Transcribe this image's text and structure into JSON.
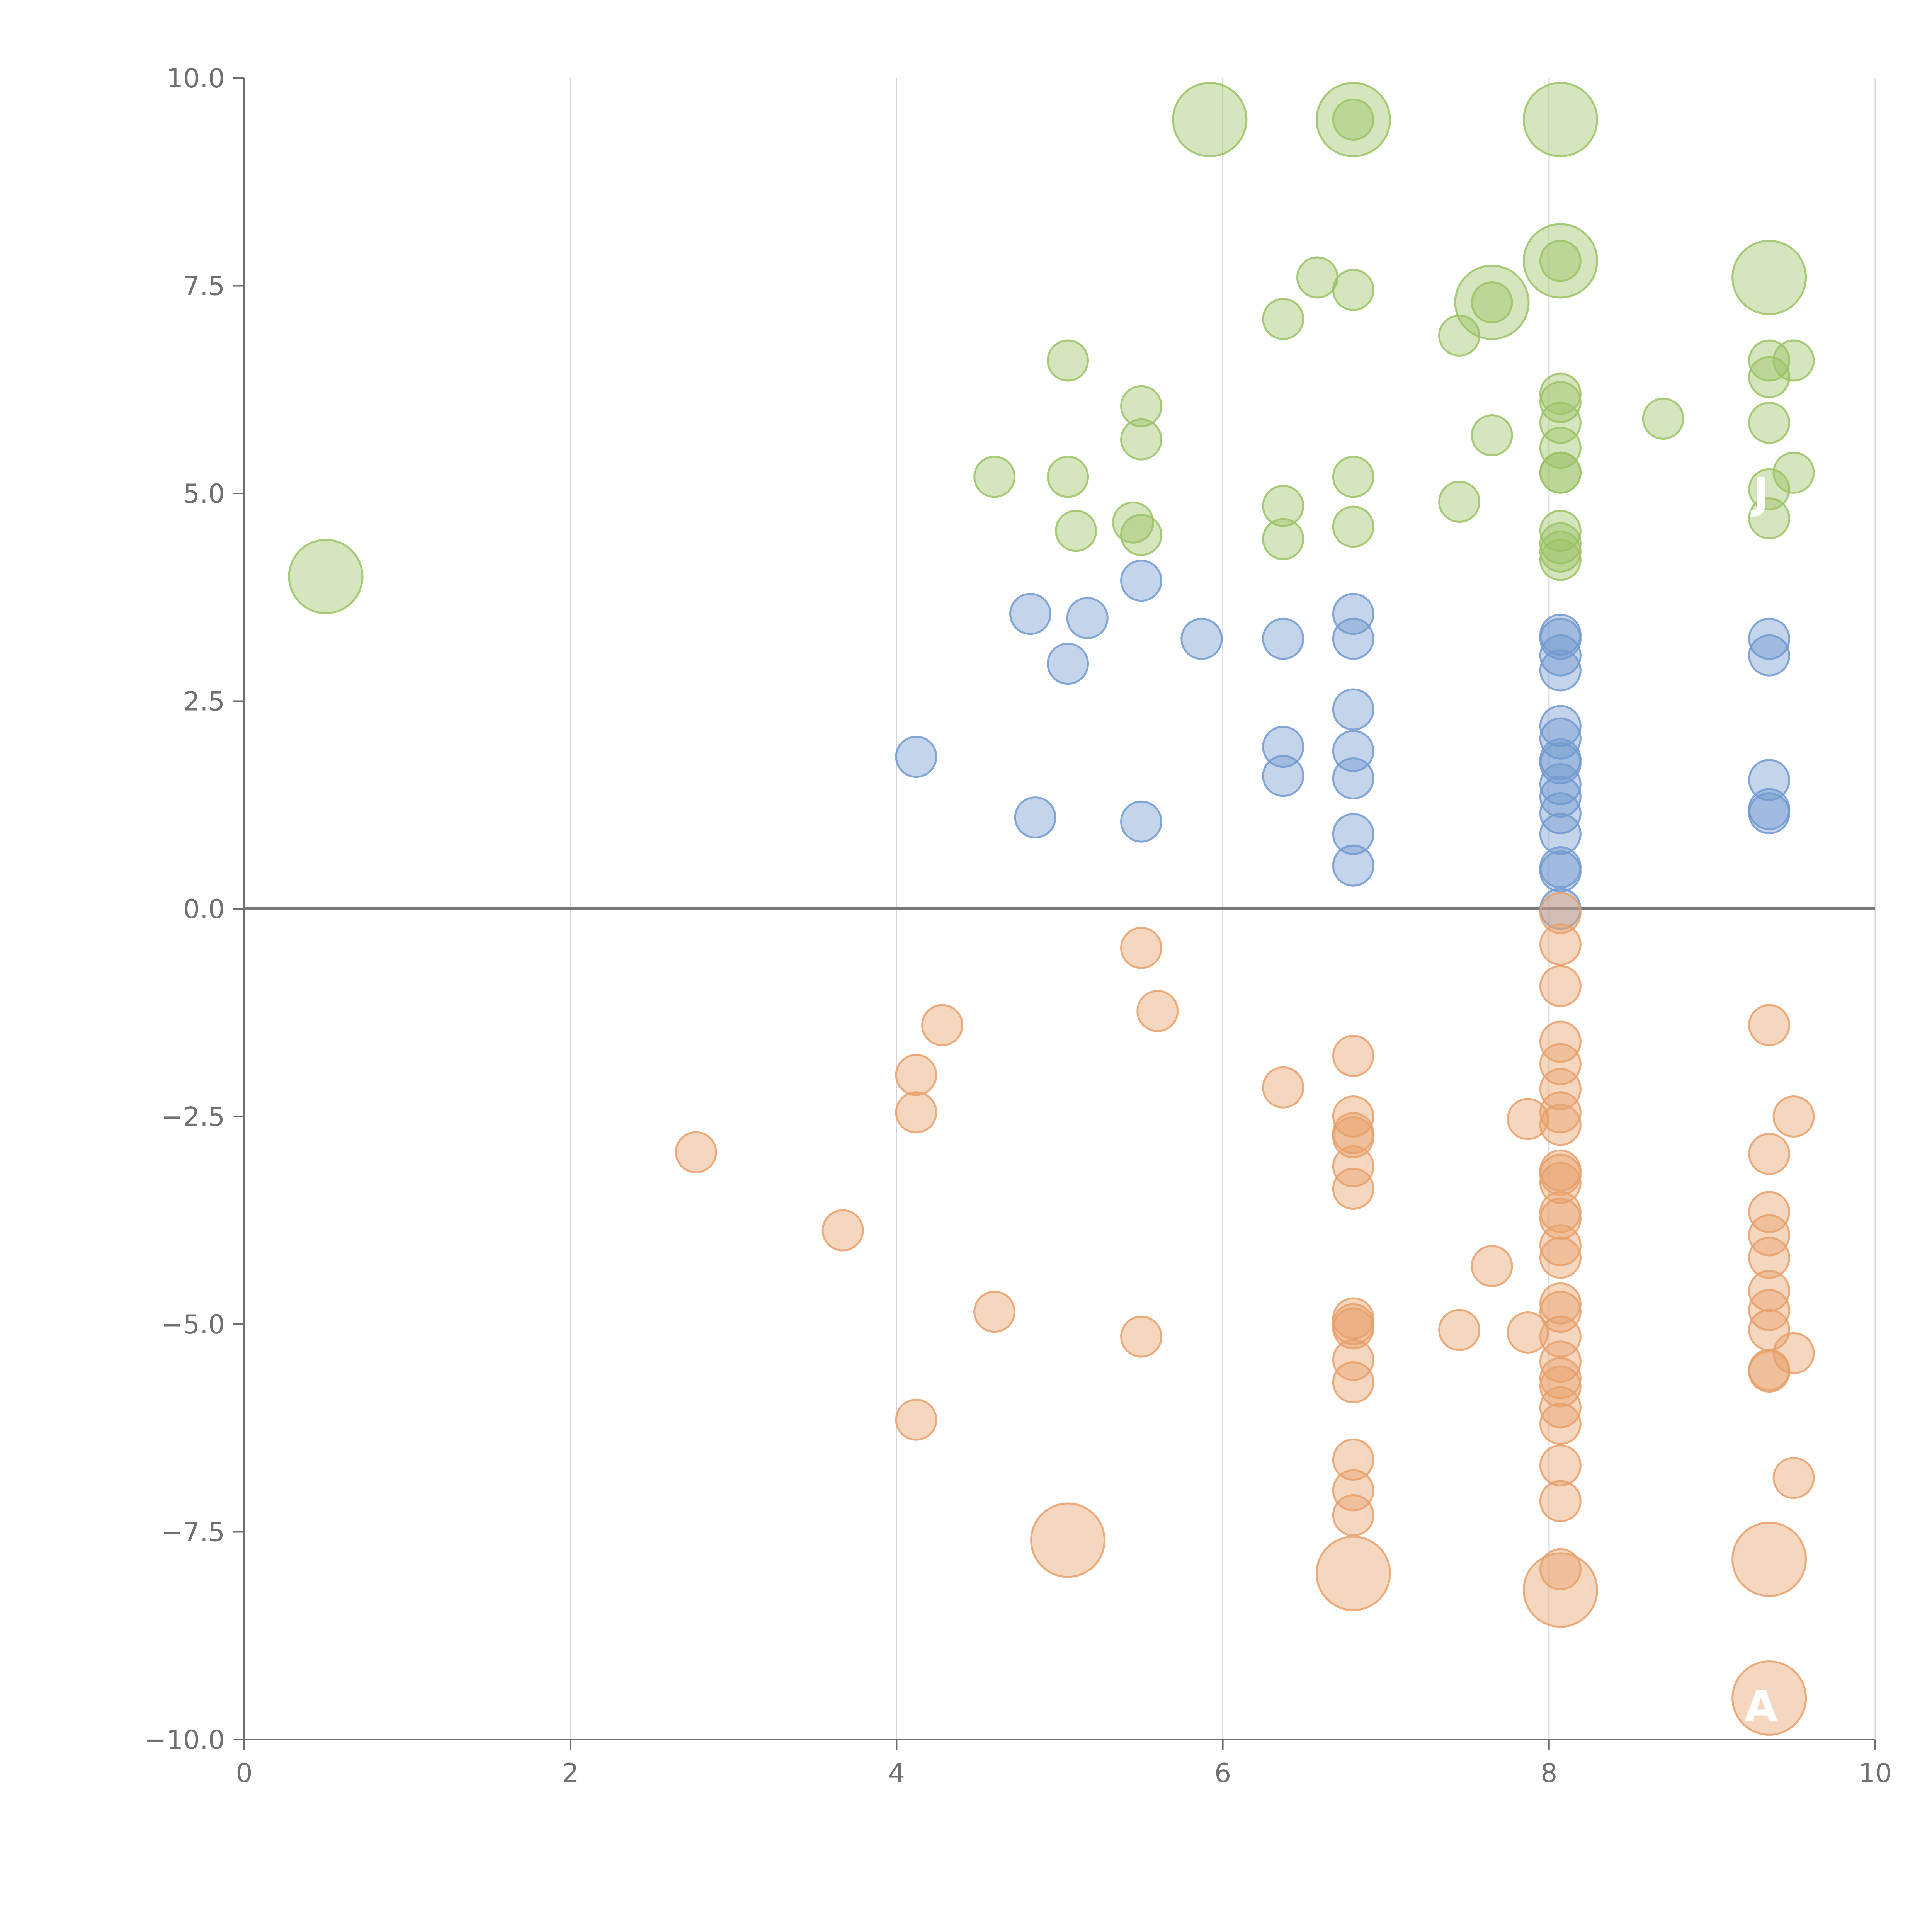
{
  "chart_data": {
    "type": "scatter",
    "title": "",
    "xlabel": "",
    "ylabel": "",
    "xlim": [
      0,
      10
    ],
    "ylim": [
      -10,
      10
    ],
    "x_ticks": [
      0,
      2,
      4,
      6,
      8,
      10
    ],
    "y_ticks": [
      10.0,
      7.5,
      5.0,
      2.5,
      0.0,
      -2.5,
      -5.0,
      -7.5,
      -10.0
    ],
    "x_tick_labels": [
      "0",
      "2",
      "4",
      "6",
      "8",
      "10"
    ],
    "y_tick_labels": [
      "10.0",
      "7.5",
      "5.0",
      "2.5",
      "0.0",
      "−2.5",
      "−5.0",
      "−7.5",
      "−10.0"
    ],
    "grid": "vertical lines at x ticks",
    "reference_line_y": 0,
    "series": [
      {
        "name": "green",
        "color": "#9bc264",
        "points": [
          {
            "x": 0.5,
            "y": 4.0,
            "s": "large"
          },
          {
            "x": 4.6,
            "y": 5.2
          },
          {
            "x": 5.05,
            "y": 6.6
          },
          {
            "x": 5.05,
            "y": 5.2
          },
          {
            "x": 5.1,
            "y": 4.55
          },
          {
            "x": 5.45,
            "y": 4.65
          },
          {
            "x": 5.5,
            "y": 6.05
          },
          {
            "x": 5.5,
            "y": 5.65
          },
          {
            "x": 5.5,
            "y": 4.5
          },
          {
            "x": 5.92,
            "y": 9.5,
            "s": "large"
          },
          {
            "x": 6.37,
            "y": 7.1
          },
          {
            "x": 6.37,
            "y": 4.85
          },
          {
            "x": 6.37,
            "y": 4.45
          },
          {
            "x": 6.58,
            "y": 7.6
          },
          {
            "x": 6.8,
            "y": 7.45
          },
          {
            "x": 6.8,
            "y": 5.2
          },
          {
            "x": 6.8,
            "y": 4.6
          },
          {
            "x": 6.8,
            "y": 9.5,
            "s": "large"
          },
          {
            "x": 6.8,
            "y": 9.5
          },
          {
            "x": 7.45,
            "y": 6.9
          },
          {
            "x": 7.45,
            "y": 4.9
          },
          {
            "x": 7.65,
            "y": 7.3,
            "s": "large"
          },
          {
            "x": 7.65,
            "y": 7.3
          },
          {
            "x": 7.65,
            "y": 5.7
          },
          {
            "x": 8.07,
            "y": 9.5,
            "s": "large"
          },
          {
            "x": 8.07,
            "y": 7.8,
            "s": "large"
          },
          {
            "x": 8.07,
            "y": 7.8
          },
          {
            "x": 8.07,
            "y": 6.2
          },
          {
            "x": 8.07,
            "y": 6.1
          },
          {
            "x": 8.07,
            "y": 5.85
          },
          {
            "x": 8.07,
            "y": 5.55
          },
          {
            "x": 8.07,
            "y": 5.25
          },
          {
            "x": 8.07,
            "y": 5.25
          },
          {
            "x": 8.07,
            "y": 4.55
          },
          {
            "x": 8.07,
            "y": 4.4
          },
          {
            "x": 8.07,
            "y": 4.3
          },
          {
            "x": 8.07,
            "y": 4.2
          },
          {
            "x": 8.7,
            "y": 5.9
          },
          {
            "x": 9.35,
            "y": 7.6,
            "s": "large"
          },
          {
            "x": 9.35,
            "y": 6.6
          },
          {
            "x": 9.35,
            "y": 6.4
          },
          {
            "x": 9.35,
            "y": 5.85
          },
          {
            "x": 9.35,
            "y": 5.05
          },
          {
            "x": 9.35,
            "y": 4.7
          },
          {
            "x": 9.5,
            "y": 6.6
          },
          {
            "x": 9.5,
            "y": 5.25
          }
        ]
      },
      {
        "name": "blue",
        "color": "#7199d0",
        "points": [
          {
            "x": 4.12,
            "y": 1.83
          },
          {
            "x": 4.82,
            "y": 3.55
          },
          {
            "x": 4.85,
            "y": 1.1
          },
          {
            "x": 5.05,
            "y": 2.95
          },
          {
            "x": 5.17,
            "y": 3.5
          },
          {
            "x": 5.5,
            "y": 3.95
          },
          {
            "x": 5.5,
            "y": 1.05
          },
          {
            "x": 5.87,
            "y": 3.25
          },
          {
            "x": 6.37,
            "y": 3.25
          },
          {
            "x": 6.37,
            "y": 1.95
          },
          {
            "x": 6.37,
            "y": 1.6
          },
          {
            "x": 6.8,
            "y": 3.55
          },
          {
            "x": 6.8,
            "y": 3.25
          },
          {
            "x": 6.8,
            "y": 2.4
          },
          {
            "x": 6.8,
            "y": 1.9
          },
          {
            "x": 6.8,
            "y": 1.57
          },
          {
            "x": 6.8,
            "y": 0.9
          },
          {
            "x": 6.8,
            "y": 0.52
          },
          {
            "x": 8.07,
            "y": 3.3
          },
          {
            "x": 8.07,
            "y": 3.25
          },
          {
            "x": 8.07,
            "y": 3.05
          },
          {
            "x": 8.07,
            "y": 2.87
          },
          {
            "x": 8.07,
            "y": 2.2
          },
          {
            "x": 8.07,
            "y": 2.05
          },
          {
            "x": 8.07,
            "y": 1.8
          },
          {
            "x": 8.07,
            "y": 1.75
          },
          {
            "x": 8.07,
            "y": 1.5
          },
          {
            "x": 8.07,
            "y": 1.35
          },
          {
            "x": 8.07,
            "y": 1.15
          },
          {
            "x": 8.07,
            "y": 0.9
          },
          {
            "x": 8.07,
            "y": 0.5
          },
          {
            "x": 8.07,
            "y": 0.45
          },
          {
            "x": 8.07,
            "y": 0.0
          },
          {
            "x": 9.35,
            "y": 3.25
          },
          {
            "x": 9.35,
            "y": 3.05
          },
          {
            "x": 9.35,
            "y": 1.55
          },
          {
            "x": 9.35,
            "y": 1.2
          },
          {
            "x": 9.35,
            "y": 1.15
          }
        ]
      },
      {
        "name": "orange",
        "color": "#e8a06a",
        "points": [
          {
            "x": 2.77,
            "y": -2.93
          },
          {
            "x": 3.67,
            "y": -3.87
          },
          {
            "x": 4.12,
            "y": -2.0
          },
          {
            "x": 4.12,
            "y": -2.45
          },
          {
            "x": 4.12,
            "y": -6.15
          },
          {
            "x": 4.28,
            "y": -1.4
          },
          {
            "x": 4.6,
            "y": -4.85
          },
          {
            "x": 5.05,
            "y": -7.6,
            "s": "large"
          },
          {
            "x": 5.5,
            "y": -0.47
          },
          {
            "x": 5.5,
            "y": -5.15
          },
          {
            "x": 5.6,
            "y": -1.23
          },
          {
            "x": 6.37,
            "y": -2.15
          },
          {
            "x": 6.8,
            "y": -1.77
          },
          {
            "x": 6.8,
            "y": -2.5
          },
          {
            "x": 6.8,
            "y": -2.7
          },
          {
            "x": 6.8,
            "y": -2.75
          },
          {
            "x": 6.8,
            "y": -3.1
          },
          {
            "x": 6.8,
            "y": -3.37
          },
          {
            "x": 6.8,
            "y": -4.93
          },
          {
            "x": 6.8,
            "y": -5.0
          },
          {
            "x": 6.8,
            "y": -5.05
          },
          {
            "x": 6.8,
            "y": -5.43
          },
          {
            "x": 6.8,
            "y": -5.7
          },
          {
            "x": 6.8,
            "y": -6.63
          },
          {
            "x": 6.8,
            "y": -7.0
          },
          {
            "x": 6.8,
            "y": -7.3
          },
          {
            "x": 6.8,
            "y": -8.0,
            "s": "large"
          },
          {
            "x": 7.45,
            "y": -5.07
          },
          {
            "x": 7.65,
            "y": -4.3
          },
          {
            "x": 7.87,
            "y": -2.53
          },
          {
            "x": 7.87,
            "y": -5.1
          },
          {
            "x": 8.07,
            "y": -0.05
          },
          {
            "x": 8.07,
            "y": -0.43
          },
          {
            "x": 8.07,
            "y": -0.93
          },
          {
            "x": 8.07,
            "y": -1.6
          },
          {
            "x": 8.07,
            "y": -1.87
          },
          {
            "x": 8.07,
            "y": -2.17
          },
          {
            "x": 8.07,
            "y": -2.45
          },
          {
            "x": 8.07,
            "y": -2.6
          },
          {
            "x": 8.07,
            "y": -3.15
          },
          {
            "x": 8.07,
            "y": -3.2
          },
          {
            "x": 8.07,
            "y": -3.3
          },
          {
            "x": 8.07,
            "y": -3.65
          },
          {
            "x": 8.07,
            "y": -3.73
          },
          {
            "x": 8.07,
            "y": -4.05
          },
          {
            "x": 8.07,
            "y": -4.2
          },
          {
            "x": 8.07,
            "y": -4.75
          },
          {
            "x": 8.07,
            "y": -4.85
          },
          {
            "x": 8.07,
            "y": -5.15
          },
          {
            "x": 8.07,
            "y": -5.45
          },
          {
            "x": 8.07,
            "y": -5.65
          },
          {
            "x": 8.07,
            "y": -5.75
          },
          {
            "x": 8.07,
            "y": -6.0
          },
          {
            "x": 8.07,
            "y": -6.2
          },
          {
            "x": 8.07,
            "y": -6.7
          },
          {
            "x": 8.07,
            "y": -7.13
          },
          {
            "x": 8.07,
            "y": -7.95
          },
          {
            "x": 8.07,
            "y": -8.2,
            "s": "large"
          },
          {
            "x": 9.35,
            "y": -1.4
          },
          {
            "x": 9.35,
            "y": -2.95
          },
          {
            "x": 9.35,
            "y": -3.65
          },
          {
            "x": 9.35,
            "y": -3.93
          },
          {
            "x": 9.35,
            "y": -4.2
          },
          {
            "x": 9.35,
            "y": -4.6
          },
          {
            "x": 9.35,
            "y": -4.83
          },
          {
            "x": 9.35,
            "y": -5.07
          },
          {
            "x": 9.35,
            "y": -5.55
          },
          {
            "x": 9.35,
            "y": -5.57
          },
          {
            "x": 9.35,
            "y": -7.83,
            "s": "large"
          },
          {
            "x": 9.35,
            "y": -9.5,
            "s": "large"
          },
          {
            "x": 9.5,
            "y": -2.5
          },
          {
            "x": 9.5,
            "y": -5.35
          },
          {
            "x": 9.5,
            "y": -6.85
          }
        ]
      }
    ],
    "annotations": [
      {
        "text": "J",
        "x": 9.3,
        "y": 5.0
      },
      {
        "text": "A",
        "x": 9.3,
        "y": -9.6
      }
    ]
  },
  "colors": {
    "background": "#ffffff",
    "axis": "#6e6e6e",
    "grid": "#d6d6d6",
    "tick_text": "#707070"
  }
}
